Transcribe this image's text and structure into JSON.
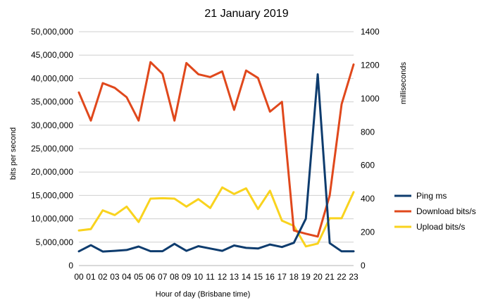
{
  "chart_data": {
    "type": "line",
    "title": "21 January 2019",
    "xlabel": "Hour of day (Brisbane time)",
    "ylabel_left": "bits per second",
    "ylabel_right": "milliseconds",
    "categories": [
      "00",
      "01",
      "02",
      "03",
      "04",
      "05",
      "06",
      "07",
      "08",
      "09",
      "10",
      "11",
      "12",
      "13",
      "14",
      "15",
      "16",
      "17",
      "18",
      "19",
      "20",
      "21",
      "22",
      "23"
    ],
    "y_left": {
      "min": 0,
      "max": 50000000,
      "step": 5000000,
      "tick_labels": [
        "0",
        "5,000,000",
        "10,000,000",
        "15,000,000",
        "20,000,000",
        "25,000,000",
        "30,000,000",
        "35,000,000",
        "40,000,000",
        "45,000,000",
        "50,000,000"
      ]
    },
    "y_right": {
      "min": 0,
      "max": 1400,
      "step": 200,
      "tick_labels": [
        "0",
        "200",
        "400",
        "600",
        "800",
        "1000",
        "1200",
        "1400"
      ]
    },
    "grid": "horizontal",
    "legend_position": "right",
    "series": [
      {
        "name": "Ping ms",
        "axis": "right",
        "color": "#0e3c6e",
        "values": [
          85,
          122,
          84,
          88,
          93,
          114,
          86,
          86,
          130,
          88,
          116,
          102,
          88,
          120,
          106,
          102,
          126,
          111,
          136,
          280,
          1145,
          134,
          85,
          85
        ]
      },
      {
        "name": "Download bits/s",
        "axis": "left",
        "color": "#e0481c",
        "values": [
          37000000,
          31000000,
          39000000,
          38000000,
          36000000,
          31000000,
          43500000,
          41000000,
          31000000,
          43300000,
          40900000,
          40300000,
          41500000,
          33300000,
          41700000,
          40100000,
          32900000,
          35000000,
          7500000,
          6800000,
          6200000,
          15000000,
          34500000,
          43000000
        ]
      },
      {
        "name": "Upload bits/s",
        "axis": "left",
        "color": "#f9d31e",
        "values": [
          7500000,
          7800000,
          11800000,
          10800000,
          12600000,
          9300000,
          14300000,
          14400000,
          14300000,
          12600000,
          14200000,
          12300000,
          16700000,
          15300000,
          16500000,
          12100000,
          16000000,
          9600000,
          8500000,
          4100000,
          4700000,
          10100000,
          10100000,
          15700000
        ]
      }
    ]
  }
}
